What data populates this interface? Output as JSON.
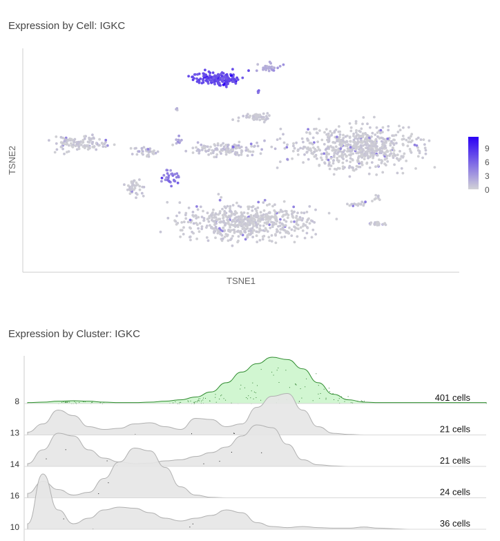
{
  "titles": {
    "cell": "Expression by Cell: IGKC",
    "cluster": "Expression by Cluster: IGKC"
  },
  "colors": {
    "low": "#cfcfd4",
    "high": "#2a00f5",
    "highlight_fill": "#ccf5cc",
    "highlight_line": "#2e8b2e",
    "ridge_fill": "#e6e6e6",
    "ridge_line": "#b0b0b0"
  },
  "chart_data": [
    {
      "type": "scatter",
      "xlabel": "TSNE1",
      "ylabel": "TSNE2",
      "colorbar": {
        "ticks": [
          "9",
          "6",
          "3",
          "0"
        ],
        "range": [
          0,
          10
        ]
      }
    },
    {
      "type": "area",
      "ridges": [
        {
          "cluster": "8",
          "count_label": "401 cells",
          "highlight": true,
          "density": [
            0.02,
            0.03,
            0.05,
            0.06,
            0.05,
            0.03,
            0.02,
            0.02,
            0.03,
            0.05,
            0.08,
            0.14,
            0.25,
            0.45,
            0.68,
            0.86,
            1.0,
            0.95,
            0.75,
            0.45,
            0.2,
            0.08,
            0.03,
            0.02,
            0.02,
            0.02,
            0.02,
            0.02,
            0.02,
            0.02,
            0.02
          ]
        },
        {
          "cluster": "13",
          "count_label": "21 cells",
          "highlight": false,
          "density": [
            0.05,
            0.2,
            0.45,
            0.35,
            0.15,
            0.1,
            0.12,
            0.2,
            0.22,
            0.15,
            0.1,
            0.3,
            0.28,
            0.15,
            0.2,
            0.5,
            0.7,
            0.75,
            0.45,
            0.15,
            0.03,
            0.01,
            0,
            0,
            0,
            0,
            0,
            0,
            0,
            0,
            0
          ]
        },
        {
          "cluster": "14",
          "count_label": "21 cells",
          "highlight": false,
          "density": [
            0.05,
            0.3,
            0.6,
            0.55,
            0.3,
            0.15,
            0.08,
            0.05,
            0.06,
            0.1,
            0.12,
            0.18,
            0.25,
            0.35,
            0.55,
            0.75,
            0.7,
            0.4,
            0.12,
            0.03,
            0.01,
            0,
            0,
            0,
            0,
            0,
            0,
            0,
            0,
            0,
            0
          ]
        },
        {
          "cluster": "16",
          "count_label": "24 cells",
          "highlight": false,
          "density": [
            0.08,
            0.3,
            0.15,
            0.05,
            0.1,
            0.35,
            0.65,
            0.9,
            0.85,
            0.55,
            0.2,
            0.05,
            0.01,
            0,
            0,
            0,
            0,
            0,
            0,
            0,
            0,
            0,
            0,
            0,
            0,
            0,
            0,
            0,
            0,
            0,
            0
          ]
        },
        {
          "cluster": "10",
          "count_label": "36 cells",
          "highlight": false,
          "density": [
            0.1,
            1.0,
            0.35,
            0.1,
            0.2,
            0.35,
            0.4,
            0.38,
            0.3,
            0.2,
            0.15,
            0.2,
            0.25,
            0.35,
            0.3,
            0.12,
            0.05,
            0.03,
            0.05,
            0.03,
            0.02,
            0.02,
            0.04,
            0.02,
            0.01,
            0,
            0,
            0,
            0,
            0,
            0
          ]
        }
      ]
    }
  ]
}
